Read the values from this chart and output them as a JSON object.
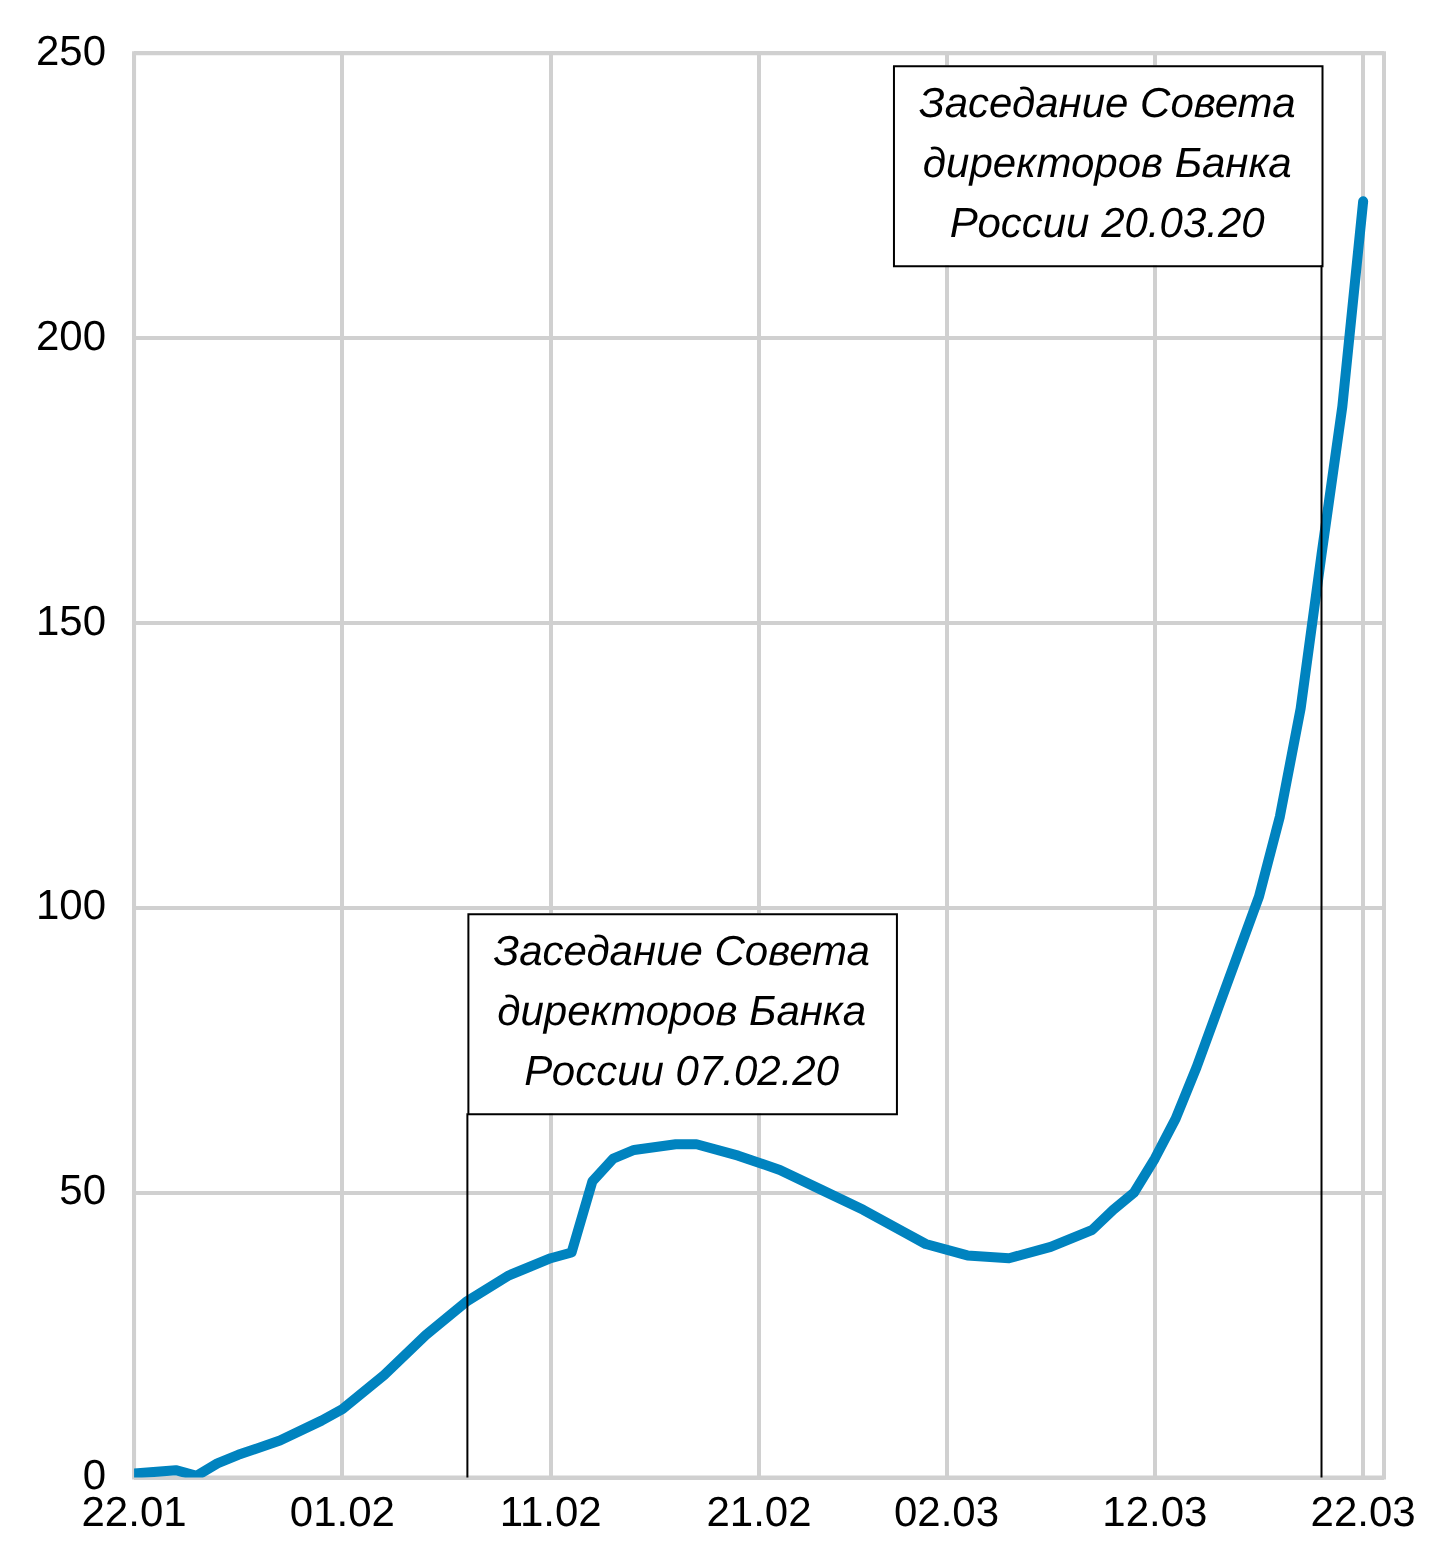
{
  "chart_data": {
    "type": "line",
    "x": [
      "--01-22",
      "--01-24",
      "--01-25",
      "--01-26",
      "--01-27",
      "--01-29",
      "--01-31",
      "--02-01",
      "--02-03",
      "--02-05",
      "--02-07",
      "--02-09",
      "--02-11",
      "--02-12",
      "--02-13",
      "--02-14",
      "--02-15",
      "--02-17",
      "--02-18",
      "--02-20",
      "--02-22",
      "--02-24",
      "--02-26",
      "--02-28",
      "--03-01",
      "--03-03",
      "--03-05",
      "--03-07",
      "--03-09",
      "--03-10",
      "--03-11",
      "--03-12",
      "--03-13",
      "--03-14",
      "--03-15",
      "--03-16",
      "--03-17",
      "--03-18",
      "--03-19",
      "--03-20",
      "--03-21",
      "--03-22"
    ],
    "series": [
      {
        "color": "#0083bf",
        "values": [
          0.7,
          1.3,
          0.3,
          2.5,
          4,
          6.5,
          10,
          12,
          18,
          25,
          31,
          35.5,
          38.5,
          39.5,
          52,
          56,
          57.5,
          58.5,
          58.5,
          56.5,
          54,
          50.5,
          47,
          43,
          41,
          39,
          38.5,
          40.5,
          43.5,
          47,
          50,
          56,
          63,
          72,
          82,
          92,
          102,
          116,
          135,
          162,
          188,
          224
        ]
      }
    ],
    "xlim": [
      "--01-22",
      "--03-23"
    ],
    "xticks": [
      {
        "value": "--01-22",
        "label": "22.01"
      },
      {
        "value": "--02-01",
        "label": "01.02"
      },
      {
        "value": "--02-11",
        "label": "11.02"
      },
      {
        "value": "--02-21",
        "label": "21.02"
      },
      {
        "value": "--03-02",
        "label": "02.03"
      },
      {
        "value": "--03-12",
        "label": "12.03"
      },
      {
        "value": "--03-22",
        "label": "22.03"
      }
    ],
    "ylim": [
      0,
      250
    ],
    "yticks": [
      0,
      50,
      100,
      150,
      200,
      250
    ],
    "grid": true,
    "legend": false,
    "marker": "none",
    "line_style": "solid",
    "ref_lines": [
      {
        "axis": "x",
        "value": "--02-07",
        "label": "Заседание Совета директоров Банка России 07.02.20",
        "color": "#000000"
      },
      {
        "axis": "x",
        "value": "--03-20",
        "label": "Заседание Совета директоров Банка России 20.03.20",
        "color": "#000000"
      }
    ]
  }
}
